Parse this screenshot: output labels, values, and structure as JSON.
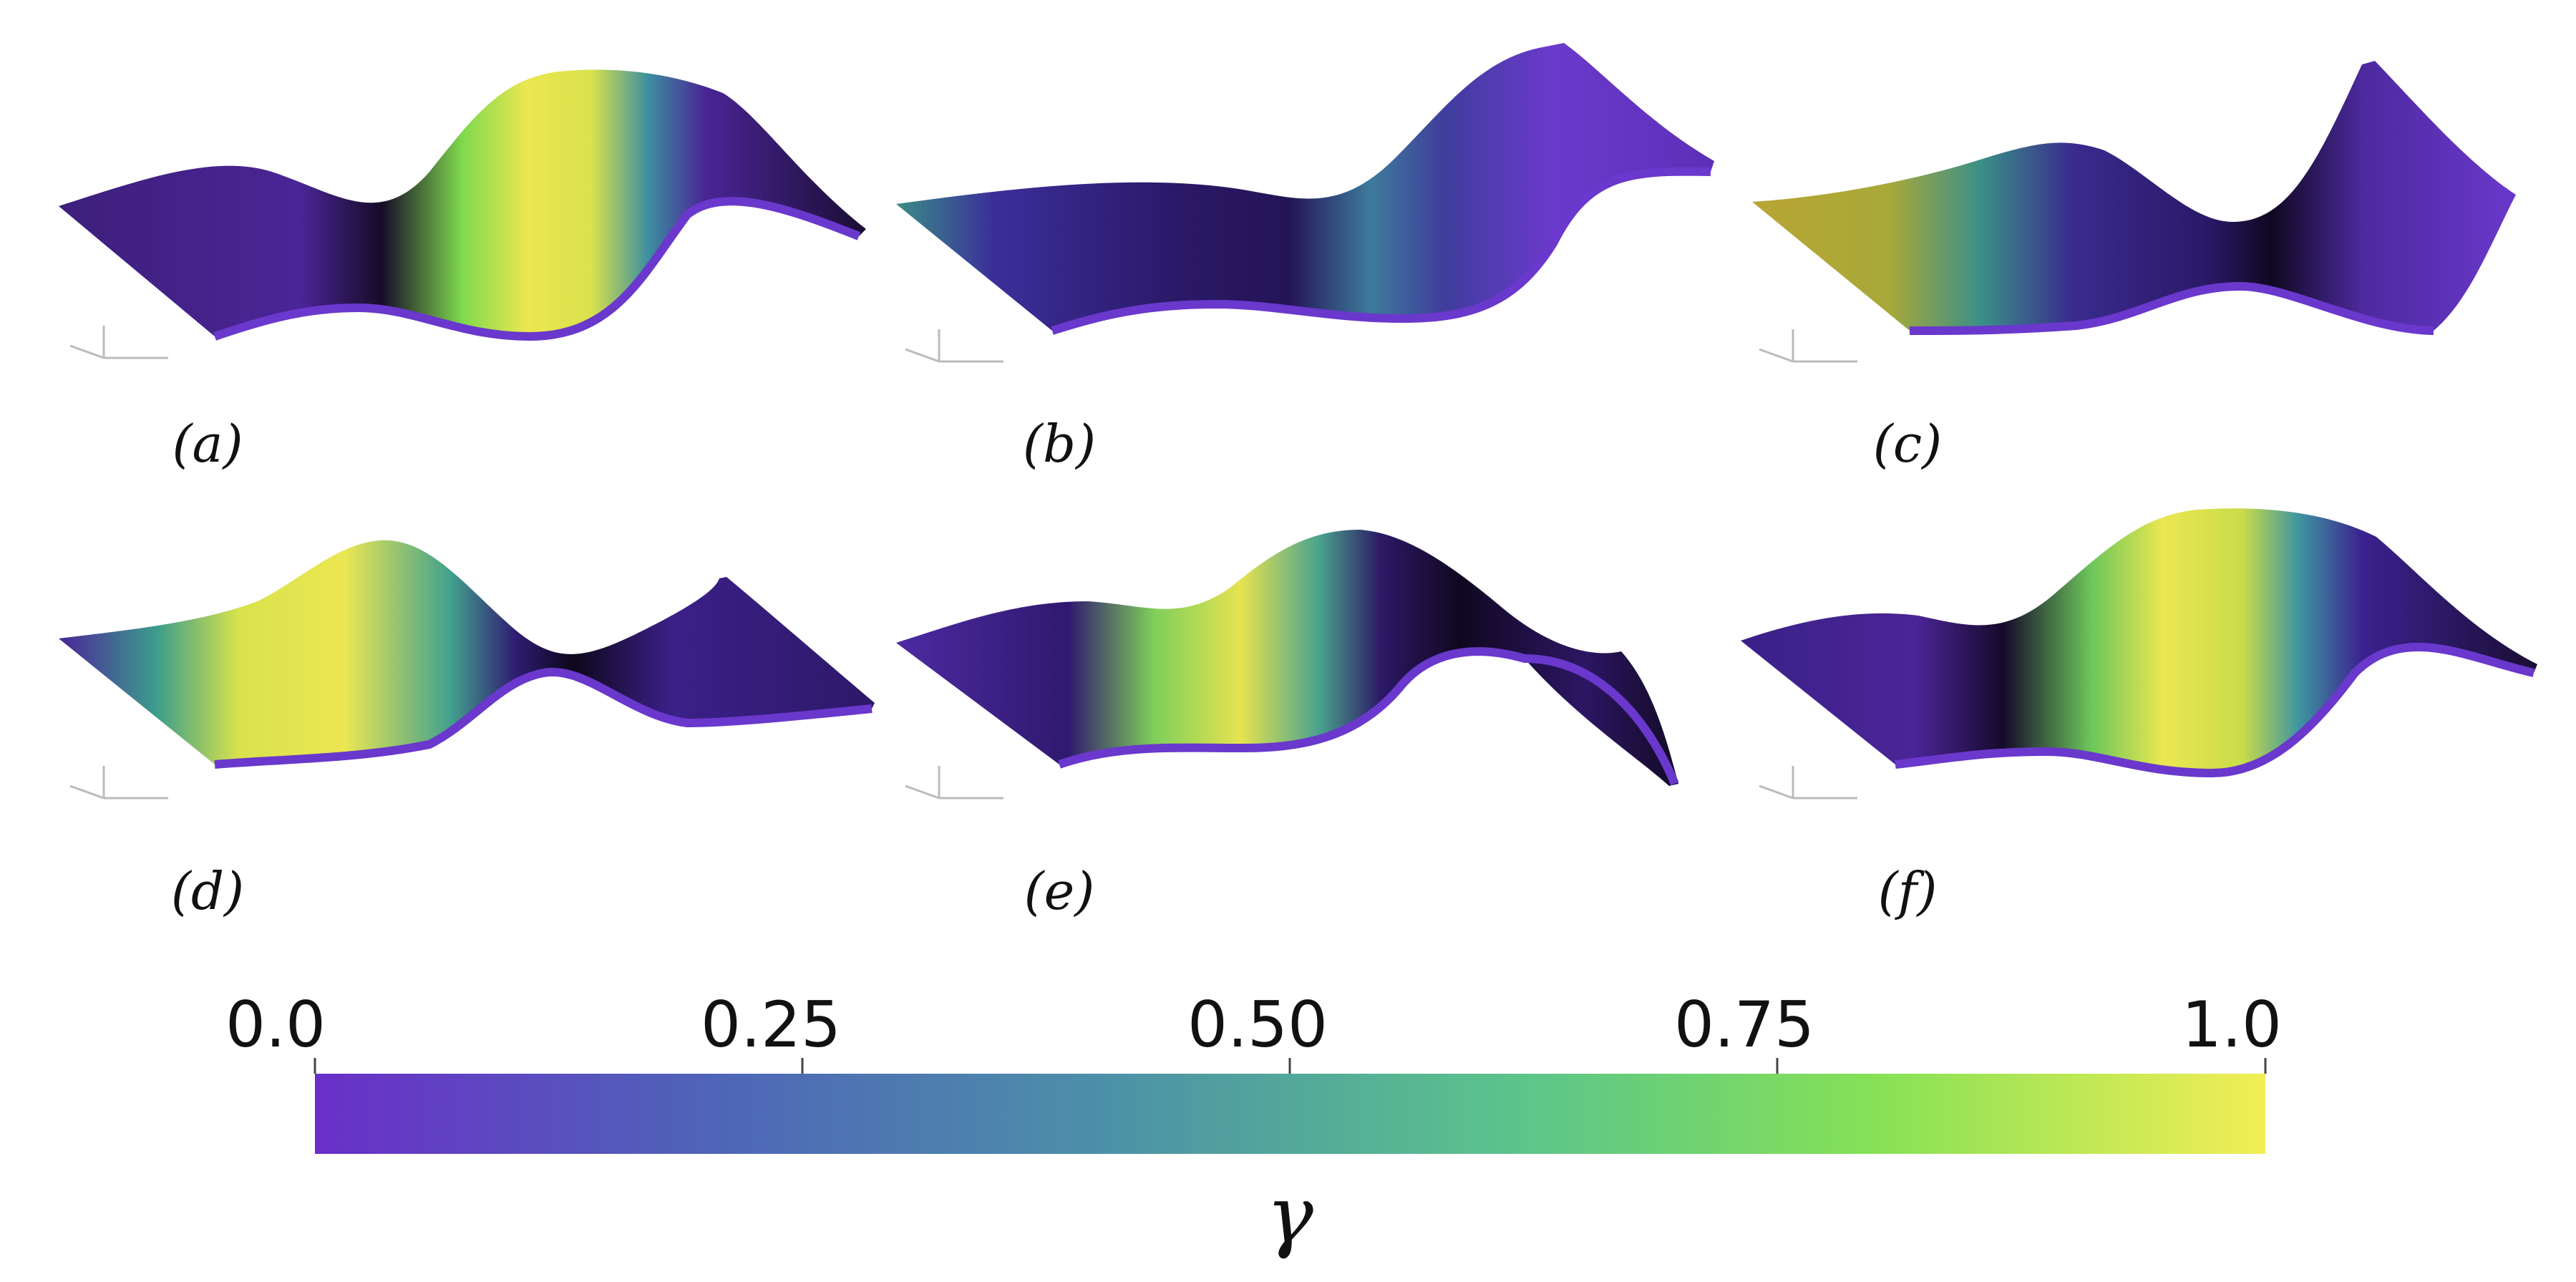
{
  "figure": {
    "panels": [
      {
        "label": "(a)",
        "id": "a"
      },
      {
        "label": "(b)",
        "id": "b"
      },
      {
        "label": "(c)",
        "id": "c"
      },
      {
        "label": "(d)",
        "id": "d"
      },
      {
        "label": "(e)",
        "id": "e"
      },
      {
        "label": "(f)",
        "id": "f"
      }
    ],
    "colorbar": {
      "title": "γ",
      "ticks": [
        "0.0",
        "0.25",
        "0.50",
        "0.75",
        "1.0"
      ],
      "tick_values": [
        0.0,
        0.25,
        0.5,
        0.75,
        1.0
      ],
      "range": [
        0.0,
        1.0
      ],
      "colormap": "viridis-like",
      "colors": [
        "#6a2fc8",
        "#4f64b8",
        "#4c8fa8",
        "#5cc58a",
        "#86e156",
        "#f2ee55"
      ]
    }
  }
}
